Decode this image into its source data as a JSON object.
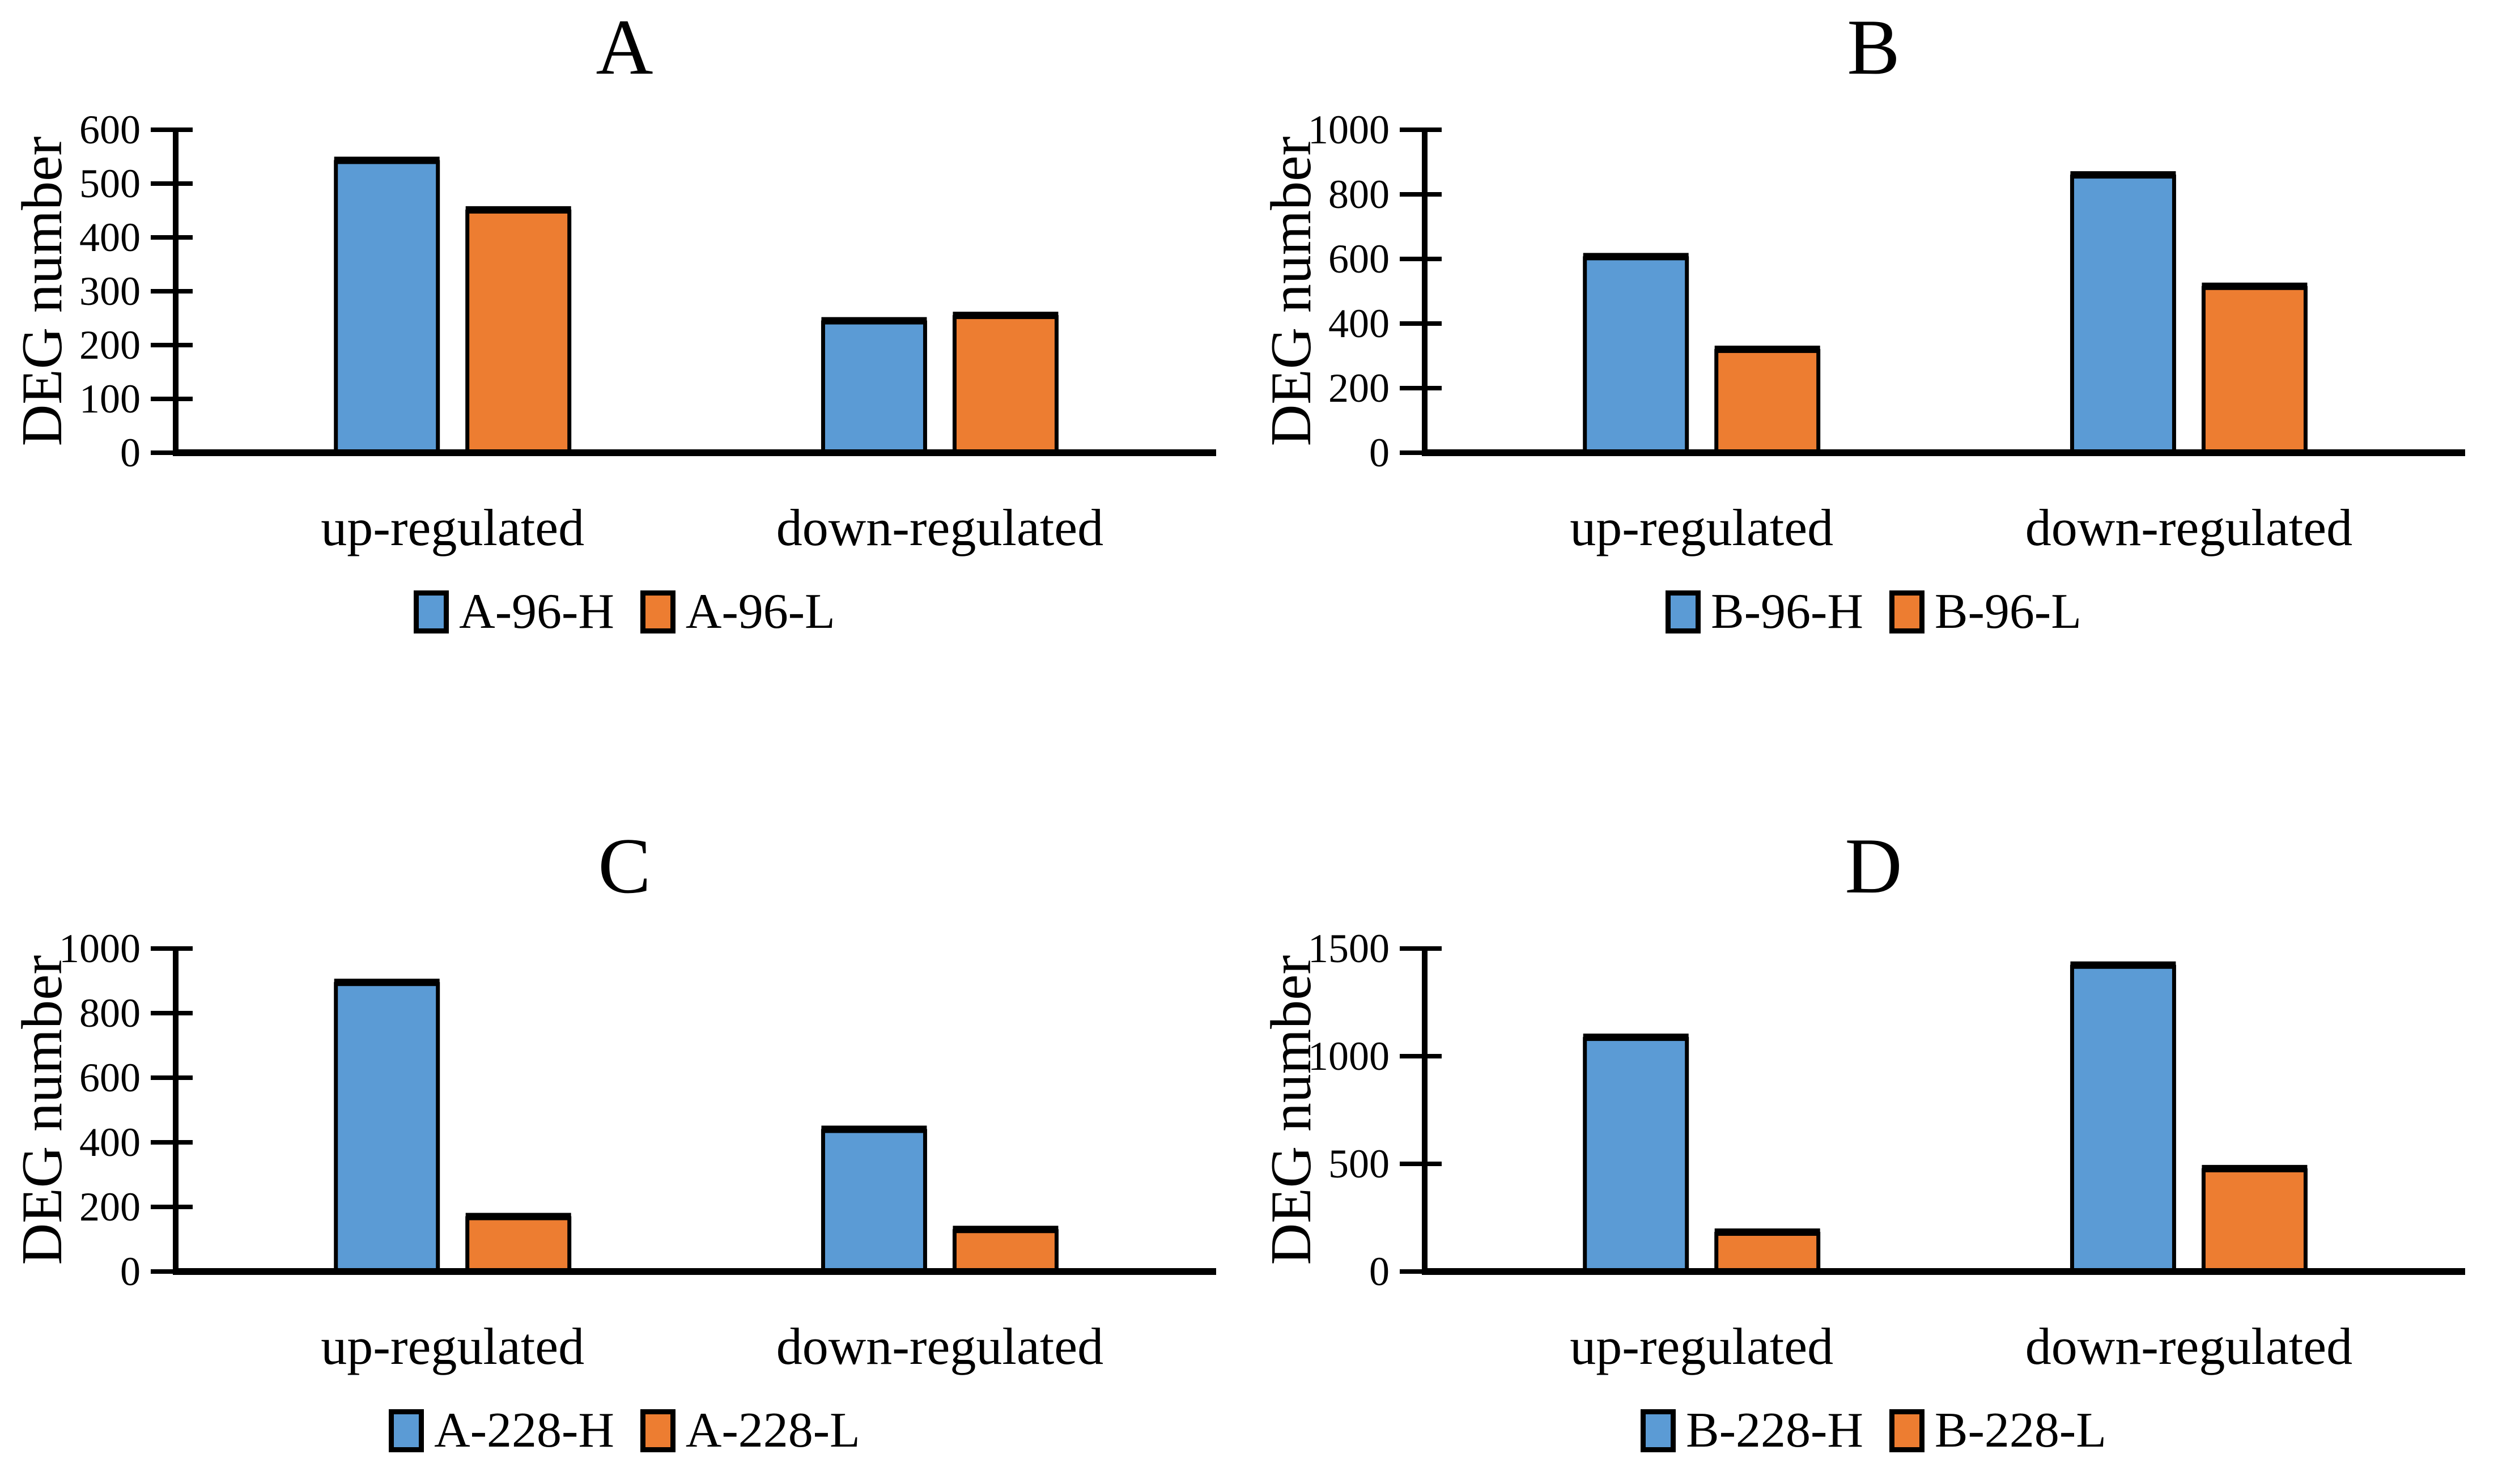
{
  "figure": {
    "background": "#ffffff",
    "text_color": "#000000",
    "axis_color": "#000000",
    "bar_border_color": "#000000",
    "series_colors": {
      "high": "#5B9BD5",
      "low": "#ED7D31"
    }
  },
  "chart_data": [
    {
      "type": "bar",
      "panel_label": "A",
      "ylabel": "DEG number",
      "categories": [
        "up-regulated",
        "down-regulated"
      ],
      "series": [
        {
          "name": "A-96-H",
          "color": "#5B9BD5",
          "values": [
            540,
            242
          ]
        },
        {
          "name": "A-96-L",
          "color": "#ED7D31",
          "values": [
            448,
            252
          ]
        }
      ],
      "ylim": [
        0,
        600
      ],
      "yticks": [
        0,
        100,
        200,
        300,
        400,
        500,
        600
      ],
      "grid": false,
      "legend_position": "bottom"
    },
    {
      "type": "bar",
      "panel_label": "B",
      "ylabel": "DEG number",
      "categories": [
        "up-regulated",
        "down-regulated"
      ],
      "series": [
        {
          "name": "B-96-H",
          "color": "#5B9BD5",
          "values": [
            602,
            855
          ]
        },
        {
          "name": "B-96-L",
          "color": "#ED7D31",
          "values": [
            315,
            510
          ]
        }
      ],
      "ylim": [
        0,
        1000
      ],
      "yticks": [
        0,
        200,
        400,
        600,
        800,
        1000
      ],
      "grid": false,
      "legend_position": "bottom"
    },
    {
      "type": "bar",
      "panel_label": "C",
      "ylabel": "DEG number",
      "categories": [
        "up-regulated",
        "down-regulated"
      ],
      "series": [
        {
          "name": "A-228-H",
          "color": "#5B9BD5",
          "values": [
            890,
            435
          ]
        },
        {
          "name": "A-228-L",
          "color": "#ED7D31",
          "values": [
            165,
            125
          ]
        }
      ],
      "ylim": [
        0,
        1000
      ],
      "yticks": [
        0,
        200,
        400,
        600,
        800,
        1000
      ],
      "grid": false,
      "legend_position": "bottom"
    },
    {
      "type": "bar",
      "panel_label": "D",
      "ylabel": "DEG number",
      "categories": [
        "up-regulated",
        "down-regulated"
      ],
      "series": [
        {
          "name": "B-228-H",
          "color": "#5B9BD5",
          "values": [
            1080,
            1415
          ]
        },
        {
          "name": "B-228-L",
          "color": "#ED7D31",
          "values": [
            175,
            470
          ]
        }
      ],
      "ylim": [
        0,
        1500
      ],
      "yticks": [
        0,
        500,
        1000,
        1500
      ],
      "grid": false,
      "legend_position": "bottom"
    }
  ]
}
